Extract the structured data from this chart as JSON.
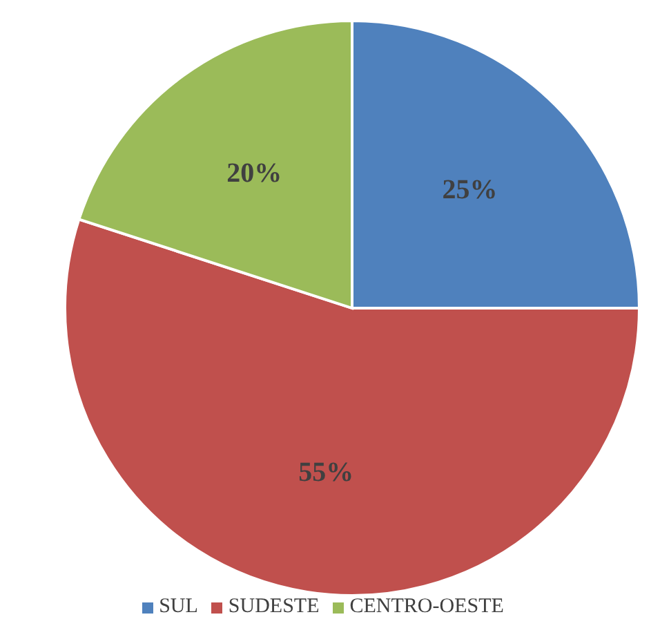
{
  "chart_data": {
    "type": "pie",
    "categories": [
      "SUL",
      "SUDESTE",
      "CENTRO-OESTE"
    ],
    "values": [
      25,
      55,
      20
    ],
    "colors": [
      "#4f81bd",
      "#c0504d",
      "#9bbb59"
    ],
    "value_labels": [
      "25%",
      "55%",
      "20%"
    ],
    "legend": "bottom"
  }
}
